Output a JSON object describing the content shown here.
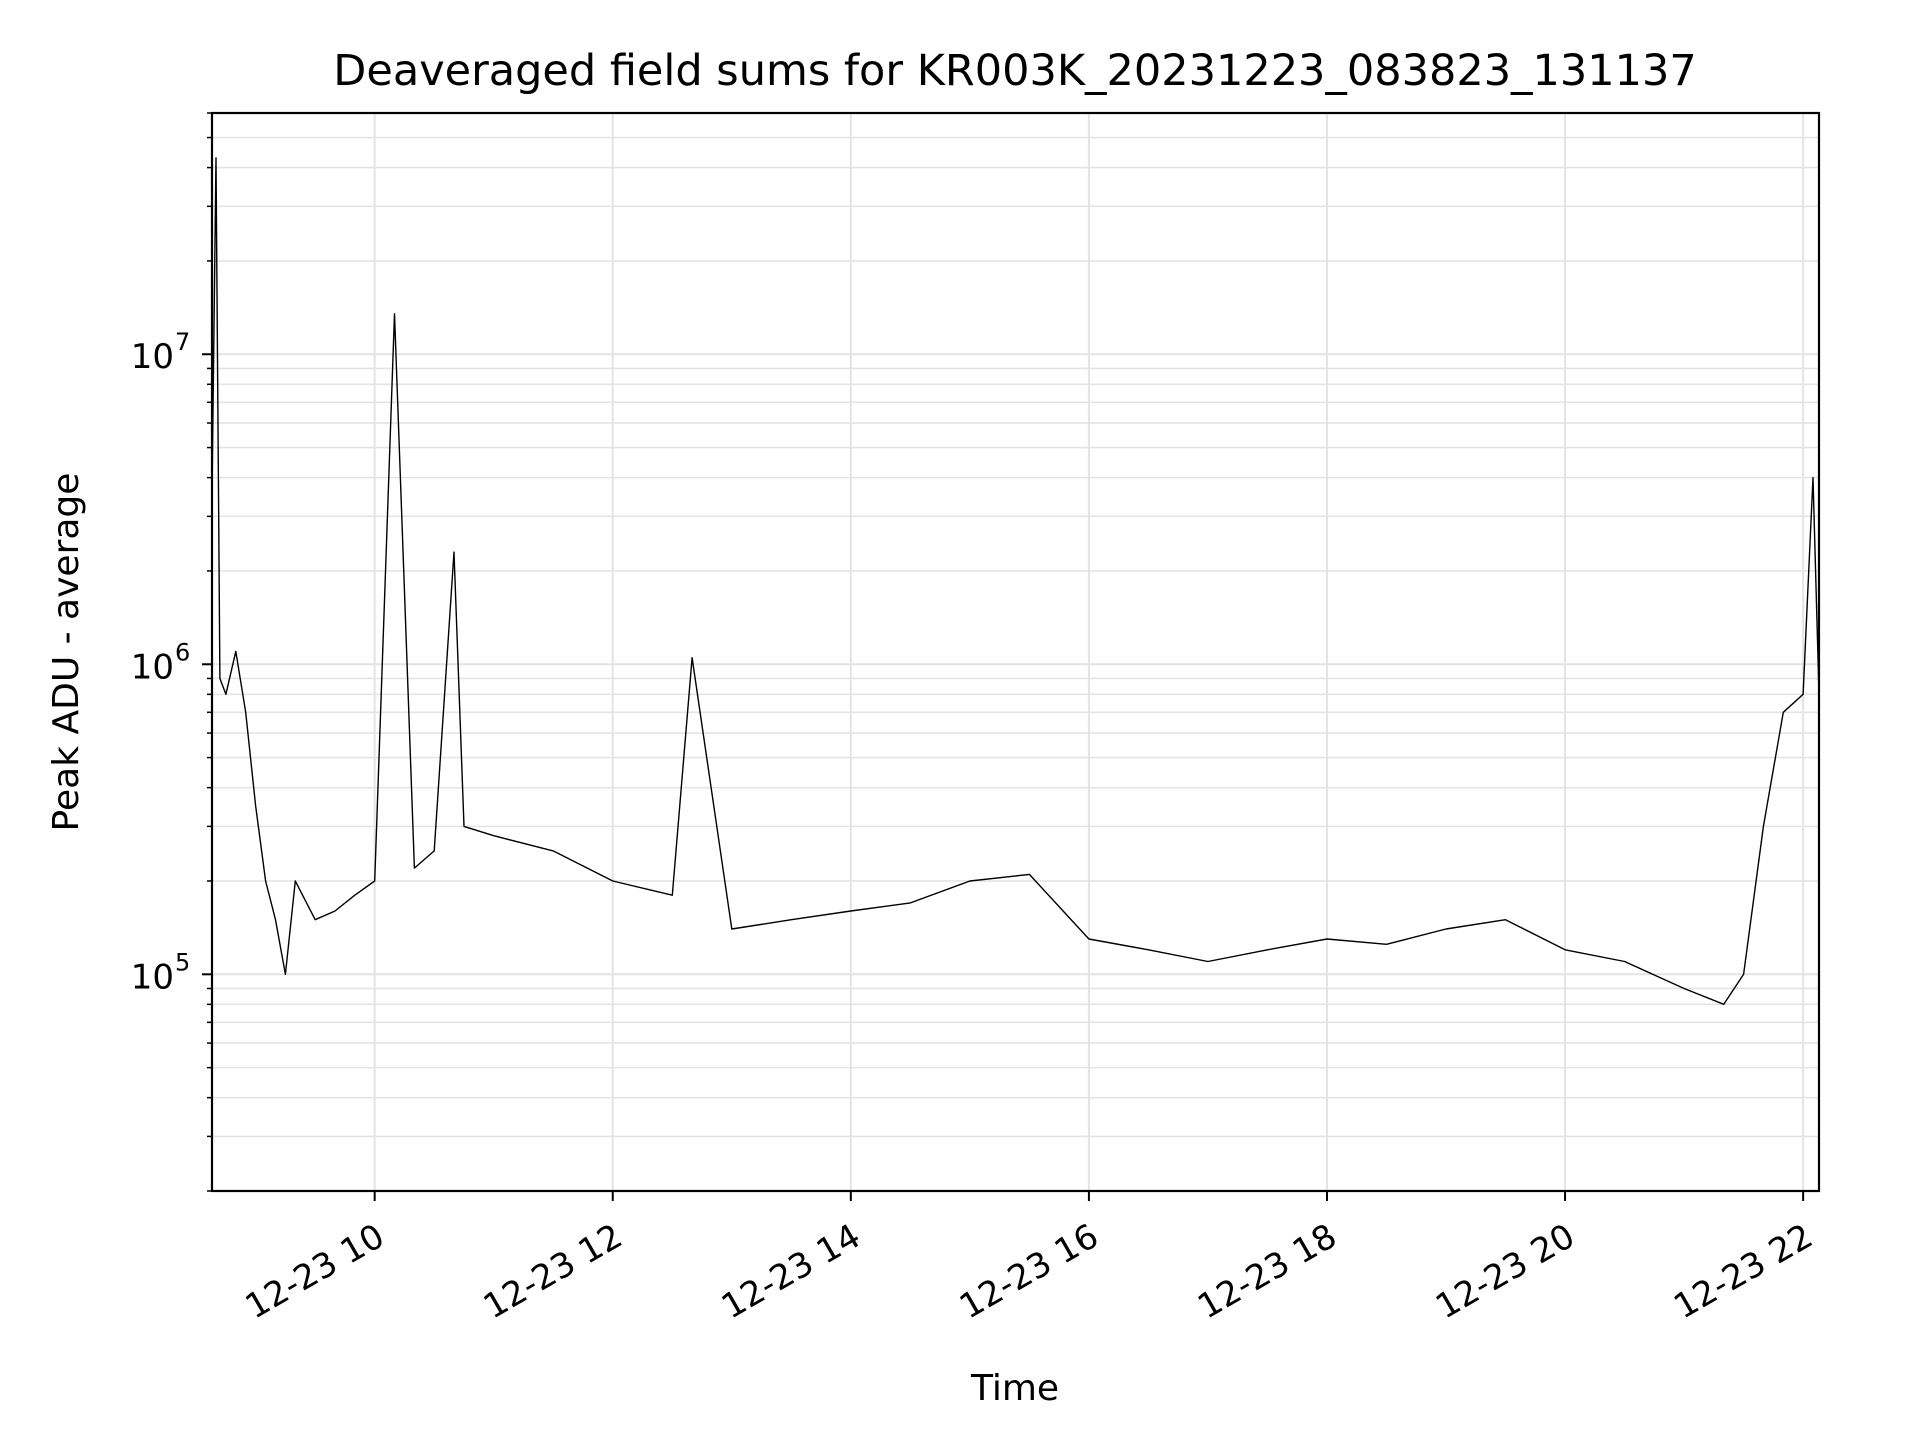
{
  "chart_data": {
    "type": "line",
    "title": "Deaveraged field sums for KR003K_20231223_083823_131137",
    "xlabel": "Time",
    "ylabel": "Peak ADU - average",
    "y_scale": "log",
    "x_ticks": [
      "12-23 10",
      "12-23 12",
      "12-23 14",
      "12-23 16",
      "12-23 18",
      "12-23 20",
      "12-23 22"
    ],
    "y_ticks": [
      {
        "base": "10",
        "exp": "5",
        "value": 100000
      },
      {
        "base": "10",
        "exp": "6",
        "value": 1000000
      },
      {
        "base": "10",
        "exp": "7",
        "value": 10000000
      }
    ],
    "xlim": [
      "2023-12-23 08:38",
      "2023-12-23 22:08"
    ],
    "ylim": [
      20000,
      60000000
    ],
    "grid": true,
    "line_color": "#000000",
    "series": [
      {
        "x": [
          "2023-12-23 08:38",
          "2023-12-23 08:40",
          "2023-12-23 08:42",
          "2023-12-23 08:45",
          "2023-12-23 08:50",
          "2023-12-23 08:55",
          "2023-12-23 09:00",
          "2023-12-23 09:05",
          "2023-12-23 09:10",
          "2023-12-23 09:15",
          "2023-12-23 09:20",
          "2023-12-23 09:30",
          "2023-12-23 09:40",
          "2023-12-23 09:50",
          "2023-12-23 10:00",
          "2023-12-23 10:10",
          "2023-12-23 10:20",
          "2023-12-23 10:30",
          "2023-12-23 10:40",
          "2023-12-23 10:45",
          "2023-12-23 11:00",
          "2023-12-23 11:30",
          "2023-12-23 12:00",
          "2023-12-23 12:30",
          "2023-12-23 12:40",
          "2023-12-23 13:00",
          "2023-12-23 13:30",
          "2023-12-23 14:00",
          "2023-12-23 14:30",
          "2023-12-23 15:00",
          "2023-12-23 15:30",
          "2023-12-23 16:00",
          "2023-12-23 16:30",
          "2023-12-23 17:00",
          "2023-12-23 17:30",
          "2023-12-23 18:00",
          "2023-12-23 18:30",
          "2023-12-23 19:00",
          "2023-12-23 19:30",
          "2023-12-23 20:00",
          "2023-12-23 20:30",
          "2023-12-23 21:00",
          "2023-12-23 21:20",
          "2023-12-23 21:30",
          "2023-12-23 21:40",
          "2023-12-23 21:50",
          "2023-12-23 22:00",
          "2023-12-23 22:05",
          "2023-12-23 22:08"
        ],
        "values": [
          3500000,
          43000000,
          900000,
          800000,
          1100000,
          700000,
          350000,
          200000,
          150000,
          100000,
          200000,
          150000,
          160000,
          180000,
          200000,
          13500000,
          220000,
          250000,
          2300000,
          300000,
          280000,
          250000,
          200000,
          180000,
          1050000,
          140000,
          150000,
          160000,
          170000,
          200000,
          210000,
          130000,
          120000,
          110000,
          120000,
          130000,
          125000,
          140000,
          150000,
          120000,
          110000,
          90000,
          80000,
          100000,
          300000,
          700000,
          800000,
          4000000,
          800000
        ]
      }
    ]
  }
}
